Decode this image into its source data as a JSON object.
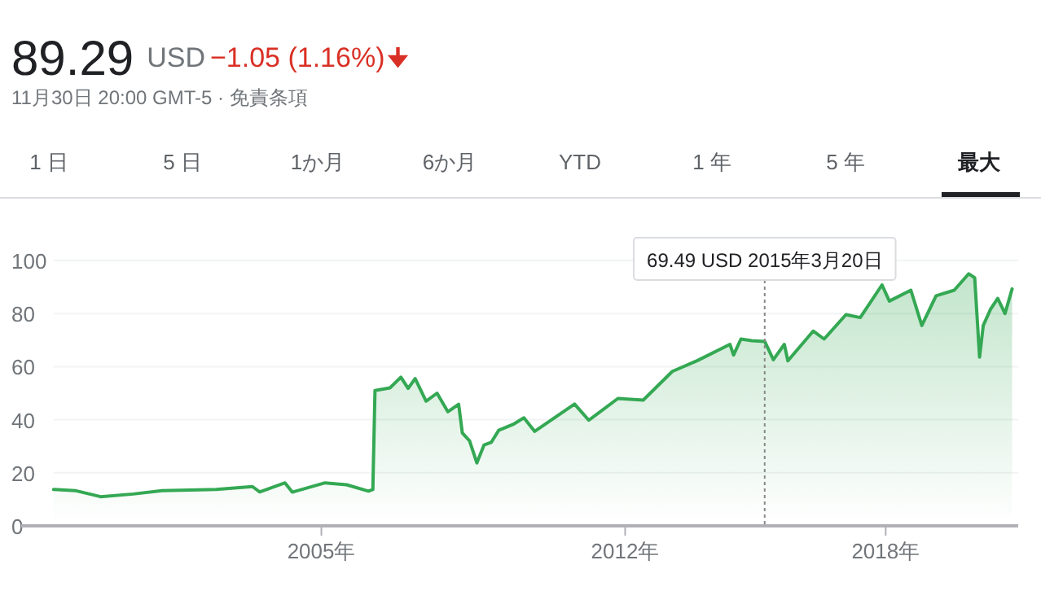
{
  "chart_data": {
    "type": "area",
    "title": "89.29",
    "subtitle": "11月30日 20:00 GMT-5 · 免責条項",
    "annotations": [
      "USD",
      "−1.05 (1.16%)",
      "1 日",
      "5 日",
      "1か月",
      "6か月",
      "YTD",
      "1 年",
      "5 年",
      "最大"
    ],
    "x": [
      "1998-11",
      "1999-05",
      "1999-12",
      "2000-09",
      "2001-05",
      "2002-08",
      "2003-06",
      "2003-08",
      "2004-03",
      "2004-05",
      "2005-02",
      "2005-08",
      "2006-02",
      "2006-03-10",
      "2006-03-28",
      "2006-08",
      "2006-11",
      "2007-01",
      "2007-03",
      "2007-06",
      "2007-09",
      "2007-12",
      "2008-03",
      "2008-04",
      "2008-06",
      "2008-08",
      "2008-10",
      "2008-12",
      "2009-02",
      "2009-06",
      "2009-09",
      "2009-12",
      "2010-11",
      "2011-03",
      "2011-11",
      "2012-06",
      "2013-02",
      "2013-09",
      "2014-06",
      "2014-07",
      "2014-09",
      "2014-12",
      "2015-03-20",
      "2015-06",
      "2015-09",
      "2015-10",
      "2016-05",
      "2016-08",
      "2017-02",
      "2017-06",
      "2017-12",
      "2018-02",
      "2018-08",
      "2018-11",
      "2019-03",
      "2019-08",
      "2019-12",
      "2020-01-20",
      "2020-03",
      "2020-04",
      "2020-06",
      "2020-08",
      "2020-10",
      "2020-11-30"
    ],
    "series": [
      {
        "color": "#34a853",
        "values": [
          13.7,
          13.3,
          11.0,
          12.0,
          13.3,
          13.7,
          14.8,
          12.8,
          16.2,
          12.7,
          16.2,
          15.5,
          13.1,
          13.7,
          51,
          52,
          56,
          51.8,
          55.5,
          47,
          50,
          43,
          45.8,
          35,
          32,
          23.7,
          30.5,
          31.5,
          36,
          38.2,
          40.7,
          35.6,
          45.9,
          39.8,
          48,
          47.4,
          58.2,
          62.3,
          68.4,
          64.4,
          70.4,
          69.8,
          69.49,
          62.6,
          68.4,
          62.2,
          73.4,
          70.4,
          79.6,
          78.5,
          90.8,
          84.7,
          88.8,
          75.5,
          86.7,
          88.8,
          95,
          93.5,
          63.6,
          75.5,
          81.6,
          85.7,
          80,
          89.29
        ]
      }
    ],
    "xlim": [
      "1998-02",
      "2021-01-20"
    ],
    "xticks": [
      {
        "value": "2005-01-01",
        "label": "2005年"
      },
      {
        "value": "2012-01-01",
        "label": "2012年"
      },
      {
        "value": "2018-01-01",
        "label": "2018年"
      }
    ],
    "ylim": [
      0,
      100
    ],
    "yticks": [
      0,
      20,
      40,
      60,
      80,
      100
    ],
    "grid": "y",
    "ref_lines": [
      {
        "axis": "x",
        "value": "2015-03-20",
        "label": "69.49 USD  2015年3月20日",
        "line_style": "dotted",
        "color": "#888888"
      }
    ]
  }
}
